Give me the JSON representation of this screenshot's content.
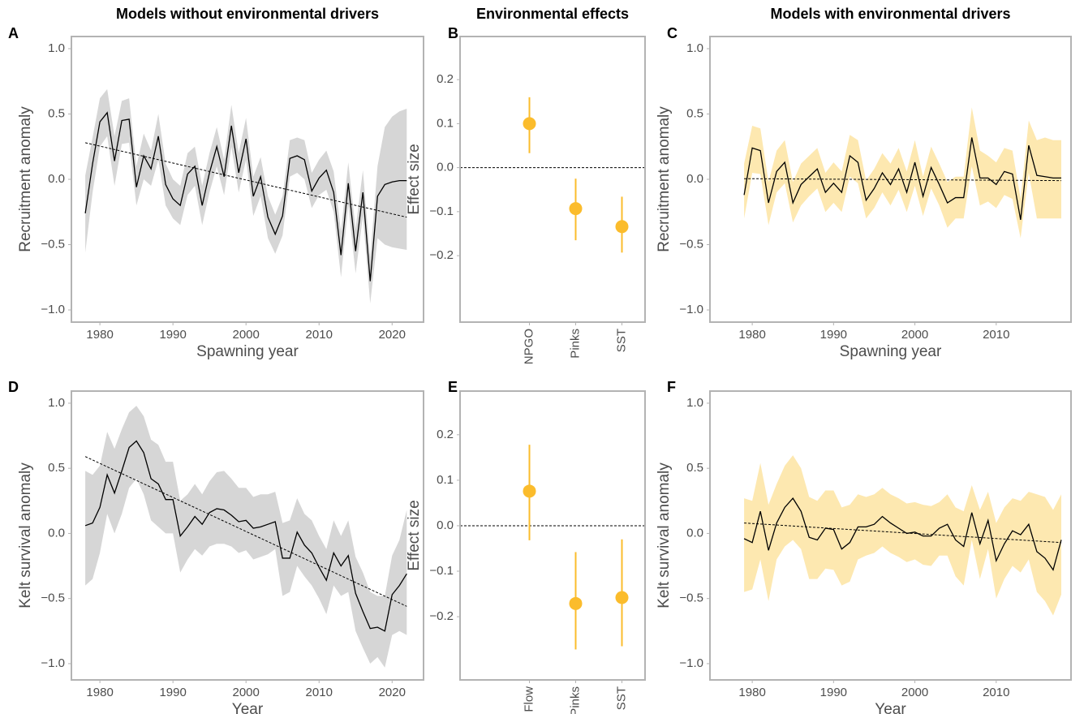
{
  "chart_data": [
    {
      "type": "line",
      "label": "A",
      "title": "Models without environmental drivers",
      "xlabel": "Spawning year",
      "ylabel": "Recruitment anomaly",
      "x": [
        1978,
        1979,
        1980,
        1981,
        1982,
        1983,
        1984,
        1985,
        1986,
        1987,
        1988,
        1989,
        1990,
        1991,
        1992,
        1993,
        1994,
        1995,
        1996,
        1997,
        1998,
        1999,
        2000,
        2001,
        2002,
        2003,
        2004,
        2005,
        2006,
        2007,
        2008,
        2009,
        2010,
        2011,
        2012,
        2013,
        2014,
        2015,
        2016,
        2017,
        2018,
        2019,
        2020,
        2021,
        2022
      ],
      "values": [
        -0.26,
        0.12,
        0.44,
        0.51,
        0.14,
        0.45,
        0.46,
        -0.06,
        0.18,
        0.08,
        0.33,
        -0.04,
        -0.15,
        -0.2,
        0.04,
        0.1,
        -0.2,
        0.05,
        0.25,
        0.02,
        0.41,
        0.05,
        0.31,
        -0.13,
        0.02,
        -0.29,
        -0.42,
        -0.28,
        0.16,
        0.18,
        0.15,
        -0.09,
        0.01,
        0.07,
        -0.1,
        -0.58,
        -0.03,
        -0.55,
        -0.1,
        -0.78,
        -0.13,
        -0.04,
        -0.02,
        -0.01,
        -0.01
      ],
      "lower": [
        -0.56,
        -0.1,
        0.25,
        0.33,
        -0.05,
        0.27,
        0.28,
        -0.2,
        0.0,
        -0.05,
        0.15,
        -0.2,
        -0.3,
        -0.35,
        -0.12,
        -0.05,
        -0.35,
        -0.1,
        0.1,
        -0.12,
        0.25,
        -0.1,
        0.15,
        -0.28,
        -0.13,
        -0.45,
        -0.57,
        -0.43,
        0.02,
        0.05,
        0.0,
        -0.22,
        -0.12,
        -0.08,
        -0.25,
        -0.75,
        -0.2,
        -0.72,
        -0.28,
        -0.95,
        -0.45,
        -0.5,
        -0.52,
        -0.53,
        -0.54
      ],
      "upper": [
        0.03,
        0.32,
        0.62,
        0.69,
        0.33,
        0.6,
        0.62,
        0.1,
        0.35,
        0.22,
        0.5,
        0.12,
        0.0,
        -0.05,
        0.2,
        0.25,
        -0.05,
        0.2,
        0.4,
        0.15,
        0.57,
        0.2,
        0.47,
        0.02,
        0.17,
        -0.13,
        -0.27,
        -0.13,
        0.3,
        0.32,
        0.3,
        0.05,
        0.15,
        0.22,
        0.06,
        -0.4,
        0.13,
        -0.38,
        0.07,
        -0.6,
        0.1,
        0.4,
        0.48,
        0.52,
        0.54
      ],
      "trend_x": [
        1978,
        2022
      ],
      "trend": [
        0.28,
        -0.29
      ],
      "band_color": "#d6d6d6",
      "color": "#000000",
      "xlim": [
        1976.1,
        2024.3
      ],
      "xticks": [
        1980,
        1990,
        2000,
        2010,
        2020
      ],
      "ylim": [
        -1.093,
        1.093
      ],
      "yticks": [
        {
          "value": -1,
          "label": "−1.0"
        },
        {
          "value": -0.5,
          "label": "−0.5"
        },
        {
          "value": 0,
          "label": "0.0"
        },
        0.5,
        {
          "value": 1,
          "label": "1.0"
        }
      ]
    },
    {
      "type": "pointrange",
      "label": "B",
      "title": "Environmental effects",
      "ylabel": "Effect size",
      "categories": [
        "NPGO",
        "Pinks",
        "SST"
      ],
      "values": [
        0.1,
        -0.093,
        -0.134
      ],
      "lower": [
        0.033,
        -0.165,
        -0.193
      ],
      "upper": [
        0.16,
        -0.025,
        -0.066
      ],
      "color": "#fbbc2c",
      "hline": 0,
      "ylim": [
        -0.351,
        0.298
      ],
      "yticks": [
        {
          "value": -0.2,
          "label": "−0.2"
        },
        {
          "value": -0.1,
          "label": "−0.1"
        },
        {
          "value": 0,
          "label": "0.0"
        },
        0.1,
        0.2
      ]
    },
    {
      "type": "line",
      "label": "C",
      "title": "Models with environmental drivers",
      "xlabel": "Spawning year",
      "ylabel": "Recruitment anomaly",
      "x": [
        1979,
        1980,
        1981,
        1982,
        1983,
        1984,
        1985,
        1986,
        1987,
        1988,
        1989,
        1990,
        1991,
        1992,
        1993,
        1994,
        1995,
        1996,
        1997,
        1998,
        1999,
        2000,
        2001,
        2002,
        2003,
        2004,
        2005,
        2006,
        2007,
        2008,
        2009,
        2010,
        2011,
        2012,
        2013,
        2014,
        2015,
        2016,
        2017,
        2018
      ],
      "values": [
        -0.12,
        0.24,
        0.22,
        -0.18,
        0.06,
        0.13,
        -0.18,
        -0.04,
        0.02,
        0.08,
        -0.1,
        -0.03,
        -0.1,
        0.18,
        0.13,
        -0.16,
        -0.07,
        0.05,
        -0.04,
        0.08,
        -0.1,
        0.13,
        -0.13,
        0.09,
        -0.04,
        -0.18,
        -0.14,
        -0.14,
        0.32,
        0.01,
        0.01,
        -0.04,
        0.06,
        0.04,
        -0.31,
        0.26,
        0.03,
        0.02,
        0.01,
        0.01
      ],
      "lower": [
        -0.3,
        0.05,
        0.04,
        -0.35,
        -0.1,
        -0.03,
        -0.33,
        -0.2,
        -0.13,
        -0.07,
        -0.25,
        -0.18,
        -0.25,
        0.02,
        -0.03,
        -0.3,
        -0.22,
        -0.1,
        -0.2,
        -0.08,
        -0.25,
        -0.05,
        -0.28,
        -0.07,
        -0.2,
        -0.37,
        -0.3,
        -0.3,
        0.1,
        -0.2,
        -0.17,
        -0.22,
        -0.12,
        -0.15,
        -0.45,
        0.05,
        -0.3,
        -0.3,
        -0.3,
        -0.3
      ],
      "upper": [
        0.12,
        0.41,
        0.39,
        -0.02,
        0.22,
        0.3,
        -0.02,
        0.12,
        0.18,
        0.24,
        0.05,
        0.13,
        0.06,
        0.34,
        0.3,
        -0.01,
        0.08,
        0.2,
        0.12,
        0.24,
        0.06,
        0.3,
        0.02,
        0.25,
        0.12,
        -0.02,
        0.02,
        0.02,
        0.55,
        0.22,
        0.18,
        0.13,
        0.24,
        0.22,
        -0.15,
        0.45,
        0.3,
        0.32,
        0.3,
        0.3
      ],
      "trend_x": [
        1979,
        2018
      ],
      "trend": [
        0.005,
        -0.01
      ],
      "band_color": "#fde8b0",
      "color": "#000000",
      "xlim": [
        1974.8,
        2019.2
      ],
      "xticks": [
        1980,
        1990,
        2000,
        2010
      ],
      "ylim": [
        -1.093,
        1.093
      ],
      "yticks": [
        {
          "value": -1,
          "label": "−1.0"
        },
        {
          "value": -0.5,
          "label": "−0.5"
        },
        {
          "value": 0,
          "label": "0.0"
        },
        0.5,
        {
          "value": 1,
          "label": "1.0"
        }
      ]
    },
    {
      "type": "line",
      "label": "D",
      "xlabel": "Year",
      "ylabel": "Kelt survival anomaly",
      "x": [
        1978,
        1979,
        1980,
        1981,
        1982,
        1983,
        1984,
        1985,
        1986,
        1987,
        1988,
        1989,
        1990,
        1991,
        1992,
        1993,
        1994,
        1995,
        1996,
        1997,
        1998,
        1999,
        2000,
        2001,
        2002,
        2003,
        2004,
        2005,
        2006,
        2007,
        2008,
        2009,
        2010,
        2011,
        2012,
        2013,
        2014,
        2015,
        2016,
        2017,
        2018,
        2019,
        2020,
        2021,
        2022
      ],
      "values": [
        0.06,
        0.08,
        0.2,
        0.45,
        0.31,
        0.48,
        0.66,
        0.71,
        0.62,
        0.42,
        0.38,
        0.26,
        0.26,
        -0.02,
        0.05,
        0.13,
        0.07,
        0.16,
        0.19,
        0.18,
        0.14,
        0.09,
        0.1,
        0.04,
        0.05,
        0.07,
        0.09,
        -0.19,
        -0.19,
        0.01,
        -0.09,
        -0.15,
        -0.26,
        -0.36,
        -0.15,
        -0.25,
        -0.17,
        -0.46,
        -0.6,
        -0.73,
        -0.72,
        -0.75,
        -0.47,
        -0.4,
        -0.31
      ],
      "lower": [
        -0.4,
        -0.35,
        -0.15,
        0.15,
        0.0,
        0.15,
        0.35,
        0.42,
        0.3,
        0.1,
        0.05,
        0.0,
        0.0,
        -0.3,
        -0.2,
        -0.12,
        -0.17,
        -0.1,
        -0.08,
        -0.08,
        -0.1,
        -0.15,
        -0.13,
        -0.2,
        -0.18,
        -0.16,
        -0.12,
        -0.48,
        -0.45,
        -0.25,
        -0.33,
        -0.4,
        -0.5,
        -0.62,
        -0.4,
        -0.48,
        -0.45,
        -0.75,
        -0.88,
        -1.0,
        -0.95,
        -1.03,
        -0.78,
        -0.75,
        -0.78
      ],
      "upper": [
        0.48,
        0.45,
        0.52,
        0.78,
        0.65,
        0.8,
        0.93,
        0.98,
        0.9,
        0.72,
        0.68,
        0.55,
        0.55,
        0.25,
        0.3,
        0.38,
        0.3,
        0.4,
        0.47,
        0.48,
        0.42,
        0.35,
        0.35,
        0.28,
        0.3,
        0.3,
        0.32,
        0.08,
        0.1,
        0.27,
        0.15,
        0.1,
        -0.02,
        -0.12,
        0.1,
        -0.02,
        0.1,
        -0.18,
        -0.3,
        -0.45,
        -0.48,
        -0.48,
        -0.17,
        -0.05,
        0.18
      ],
      "trend_x": [
        1978,
        2022
      ],
      "trend": [
        0.59,
        -0.56
      ],
      "band_color": "#d6d6d6",
      "color": "#000000",
      "xlim": [
        1976.1,
        2024.3
      ],
      "xticks": [
        1980,
        1990,
        2000,
        2010,
        2020
      ],
      "ylim": [
        -1.125,
        1.093
      ],
      "yticks": [
        {
          "value": -1,
          "label": "−1.0"
        },
        {
          "value": -0.5,
          "label": "−0.5"
        },
        {
          "value": 0,
          "label": "0.0"
        },
        0.5,
        {
          "value": 1,
          "label": "1.0"
        }
      ]
    },
    {
      "type": "pointrange",
      "label": "E",
      "ylabel": "Effect size",
      "categories": [
        "Flow",
        "Pinks",
        "SST"
      ],
      "values": [
        0.076,
        -0.171,
        -0.158
      ],
      "lower": [
        -0.032,
        -0.272,
        -0.265
      ],
      "upper": [
        0.178,
        -0.058,
        -0.03
      ],
      "color": "#fbbc2c",
      "hline": 0,
      "ylim": [
        -0.339,
        0.296
      ],
      "yticks": [
        {
          "value": -0.2,
          "label": "−0.2"
        },
        {
          "value": -0.1,
          "label": "−0.1"
        },
        {
          "value": 0,
          "label": "0.0"
        },
        0.1,
        0.2
      ]
    },
    {
      "type": "line",
      "label": "F",
      "xlabel": "Year",
      "ylabel": "Kelt survival anomaly",
      "x": [
        1979,
        1980,
        1981,
        1982,
        1983,
        1984,
        1985,
        1986,
        1987,
        1988,
        1989,
        1990,
        1991,
        1992,
        1993,
        1994,
        1995,
        1996,
        1997,
        1998,
        1999,
        2000,
        2001,
        2002,
        2003,
        2004,
        2005,
        2006,
        2007,
        2008,
        2009,
        2010,
        2011,
        2012,
        2013,
        2014,
        2015,
        2016,
        2017,
        2018
      ],
      "values": [
        -0.04,
        -0.07,
        0.17,
        -0.13,
        0.08,
        0.2,
        0.27,
        0.17,
        -0.03,
        -0.05,
        0.04,
        0.03,
        -0.12,
        -0.07,
        0.05,
        0.05,
        0.07,
        0.13,
        0.08,
        0.04,
        0.0,
        0.01,
        -0.02,
        -0.02,
        0.04,
        0.07,
        -0.05,
        -0.1,
        0.16,
        -0.08,
        0.1,
        -0.21,
        -0.08,
        0.02,
        -0.01,
        0.07,
        -0.14,
        -0.19,
        -0.28,
        -0.05
      ],
      "lower": [
        -0.45,
        -0.43,
        -0.2,
        -0.52,
        -0.2,
        -0.1,
        -0.05,
        -0.12,
        -0.35,
        -0.35,
        -0.27,
        -0.28,
        -0.4,
        -0.37,
        -0.2,
        -0.17,
        -0.15,
        -0.1,
        -0.15,
        -0.18,
        -0.22,
        -0.2,
        -0.24,
        -0.25,
        -0.17,
        -0.17,
        -0.33,
        -0.4,
        -0.05,
        -0.35,
        -0.12,
        -0.5,
        -0.35,
        -0.25,
        -0.3,
        -0.2,
        -0.45,
        -0.52,
        -0.63,
        -0.47
      ],
      "upper": [
        0.27,
        0.25,
        0.54,
        0.22,
        0.38,
        0.52,
        0.6,
        0.5,
        0.28,
        0.25,
        0.33,
        0.33,
        0.2,
        0.22,
        0.3,
        0.28,
        0.3,
        0.35,
        0.3,
        0.27,
        0.23,
        0.24,
        0.22,
        0.21,
        0.24,
        0.3,
        0.2,
        0.17,
        0.37,
        0.18,
        0.32,
        0.08,
        0.2,
        0.27,
        0.25,
        0.32,
        0.3,
        0.28,
        0.18,
        0.3
      ],
      "trend_x": [
        1979,
        2018
      ],
      "trend": [
        0.08,
        -0.07
      ],
      "band_color": "#fde8b0",
      "color": "#000000",
      "xlim": [
        1974.8,
        2019.2
      ],
      "xticks": [
        1980,
        1990,
        2000,
        2010
      ],
      "ylim": [
        -1.125,
        1.093
      ],
      "yticks": [
        {
          "value": -1,
          "label": "−1.0"
        },
        {
          "value": -0.5,
          "label": "−0.5"
        },
        {
          "value": 0,
          "label": "0.0"
        },
        0.5,
        {
          "value": 1,
          "label": "1.0"
        }
      ]
    }
  ]
}
